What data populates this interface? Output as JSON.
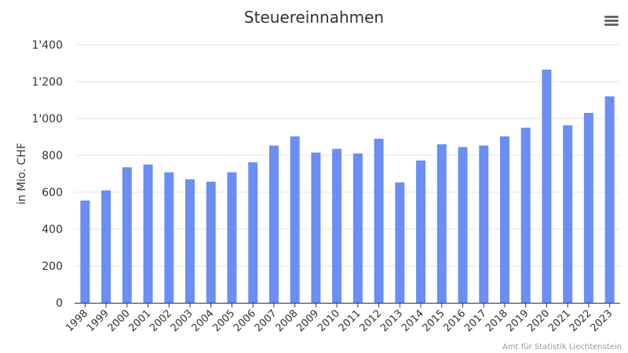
{
  "header": {
    "title": "Steuereinnahmen",
    "menu_icon": "hamburger-menu-icon"
  },
  "credits": {
    "text": "Amt für Statistik Liechtenstein"
  },
  "colors": {
    "bar": "#6b8ef5",
    "grid": "#e6e6e6",
    "axis": "#333333",
    "text": "#333333"
  },
  "chart_data": {
    "type": "bar",
    "title": "Steuereinnahmen",
    "xlabel": "",
    "ylabel": "in Mio. CHF",
    "categories": [
      "1998",
      "1999",
      "2000",
      "2001",
      "2002",
      "2003",
      "2004",
      "2005",
      "2006",
      "2007",
      "2008",
      "2009",
      "2010",
      "2011",
      "2012",
      "2013",
      "2014",
      "2015",
      "2016",
      "2017",
      "2018",
      "2019",
      "2020",
      "2021",
      "2022",
      "2023"
    ],
    "values": [
      555,
      610,
      735,
      750,
      708,
      670,
      657,
      708,
      762,
      853,
      903,
      815,
      835,
      810,
      890,
      653,
      772,
      860,
      845,
      853,
      903,
      950,
      1265,
      963,
      1030,
      1120
    ],
    "ylim": [
      0,
      1400
    ],
    "yticks": [
      0,
      200,
      400,
      600,
      800,
      1000,
      1200,
      1400
    ],
    "ytick_labels": [
      "0",
      "200",
      "400",
      "600",
      "800",
      "1'000",
      "1'200",
      "1'400"
    ],
    "grid": true,
    "legend": "none"
  }
}
